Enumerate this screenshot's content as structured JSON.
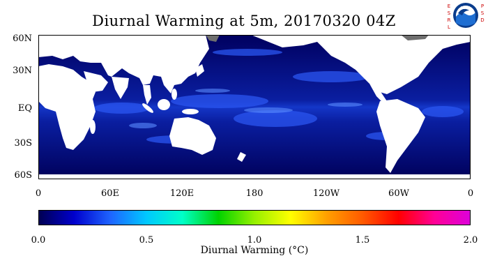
{
  "title": "Diurnal Warming at 5m, 20170320 04Z",
  "logos": {
    "esrl_text": "ESRL",
    "psd_text": "PSD",
    "noaa_text": "NOAA"
  },
  "map": {
    "projection": "cylindrical-equidistant",
    "lat_labels": [
      "60N",
      "30N",
      "EQ",
      "30S",
      "60S"
    ],
    "lon_labels": [
      "0",
      "60E",
      "120E",
      "180",
      "120W",
      "60W",
      "0"
    ],
    "ocean_base_color": "#00005f",
    "land_color": "#ffffff",
    "ice_color": "#6e6e6e",
    "warm_streak_color": "#3c6dff"
  },
  "colorbar": {
    "min": 0.0,
    "max": 2.0,
    "tick_labels": [
      "0.0",
      "0.5",
      "1.0",
      "1.5",
      "2.0"
    ],
    "label": "Diurnal Warming (°C)",
    "colors": [
      "#000050",
      "#0000cd",
      "#1e64ff",
      "#00c8ff",
      "#00ffc8",
      "#00d200",
      "#96f000",
      "#ffff00",
      "#ffa000",
      "#ff5a00",
      "#ff0000",
      "#ff0096",
      "#dc00dc"
    ]
  }
}
